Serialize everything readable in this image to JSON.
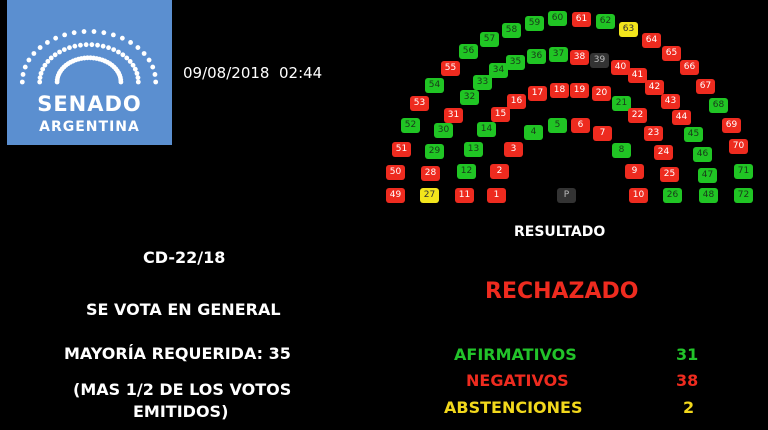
{
  "logo": {
    "line1": "SENADO",
    "line2": "ARGENTINA"
  },
  "datetime": "09/08/2018  02:44",
  "bill": "CD-22/18",
  "vote_type": "SE VOTA EN GENERAL",
  "majority": "MAYORÍA REQUERIDA: 35",
  "majority_note1": "(MAS 1/2 DE LOS VOTOS",
  "majority_note2": "EMITIDOS)",
  "result_label": "RESULTADO",
  "result": "RECHAZADO",
  "tally": [
    {
      "label": "AFIRMATIVOS",
      "value": "31",
      "color": "#22c32a"
    },
    {
      "label": "NEGATIVOS",
      "value": "38",
      "color": "#ee2b1f"
    },
    {
      "label": "ABSTENCIONES",
      "value": "2",
      "color": "#f2d81c"
    }
  ],
  "colors": {
    "afirmativo": "#20c524",
    "negativo": "#ee2b1f",
    "abstencion": "#f2e51c",
    "ausente": "#333333",
    "logo_bg": "#5b8fd0"
  },
  "president_label": "P",
  "seats": "RRRGGRRGRRRGGGRRRRRRGRRRRGYRGGRGGGGGGRNRRRRRGGGGRRRGRGRGGGGGRGYRRRRGRRGG"
}
